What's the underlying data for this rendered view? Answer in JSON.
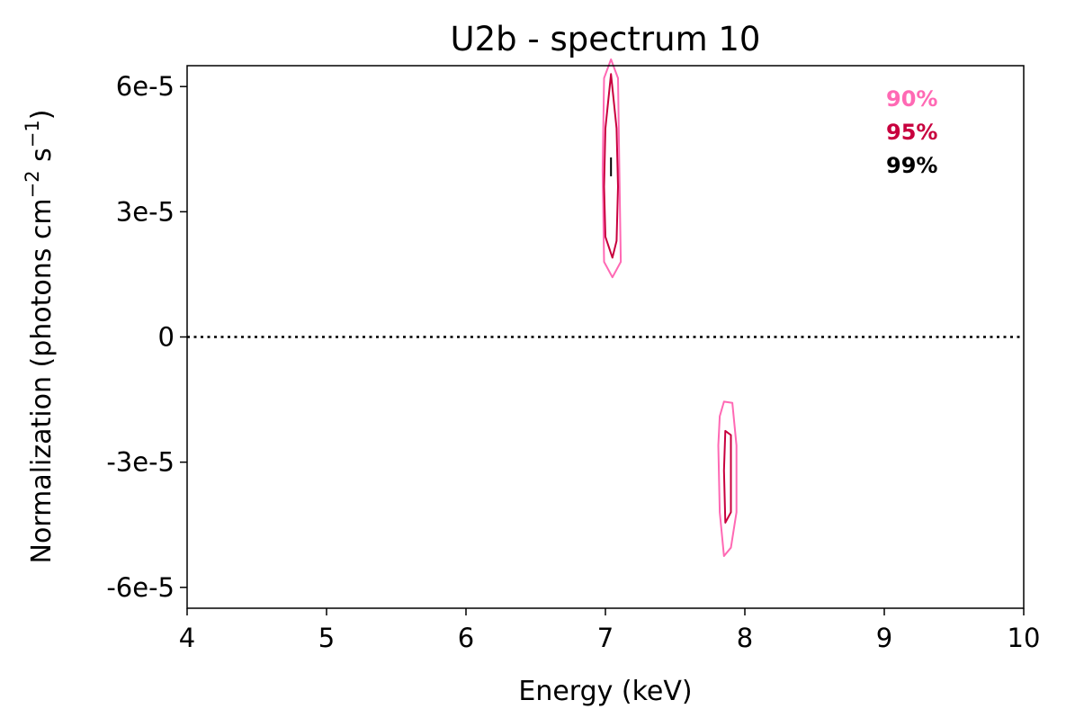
{
  "chart_data": {
    "type": "contour",
    "title": "U2b - spectrum 10",
    "xlabel": "Energy (keV)",
    "ylabel_main": "Normalization (photons cm",
    "ylabel_exp1": "−2",
    "ylabel_mid": " s",
    "ylabel_exp2": "−1",
    "ylabel_end": ")",
    "xlim": [
      4,
      10
    ],
    "ylim": [
      -6.5e-05,
      6.5e-05
    ],
    "x_ticks": [
      {
        "value": 4,
        "label": "4"
      },
      {
        "value": 5,
        "label": "5"
      },
      {
        "value": 6,
        "label": "6"
      },
      {
        "value": 7,
        "label": "7"
      },
      {
        "value": 8,
        "label": "8"
      },
      {
        "value": 9,
        "label": "9"
      },
      {
        "value": 10,
        "label": "10"
      }
    ],
    "y_ticks": [
      {
        "value": 6e-05,
        "label": "6e-5"
      },
      {
        "value": 3e-05,
        "label": "3e-5"
      },
      {
        "value": 0,
        "label": "0"
      },
      {
        "value": -3e-05,
        "label": "-3e-5"
      },
      {
        "value": -6e-05,
        "label": "-6e-5"
      }
    ],
    "reference_line": {
      "y": 0,
      "style": "dotted",
      "color": "#000000"
    },
    "legend": {
      "placement": "top-right",
      "entries": [
        {
          "label": "90%",
          "color": "#ff69b4"
        },
        {
          "label": "95%",
          "color": "#c8003e"
        },
        {
          "label": "99%",
          "color": "#000000"
        }
      ]
    },
    "contours": [
      {
        "level": "90%",
        "color": "#ff69b4",
        "points": [
          [
            7.04,
            6.65e-05
          ],
          [
            7.09,
            6.2e-05
          ],
          [
            7.1,
            4e-05
          ],
          [
            7.11,
            1.8e-05
          ],
          [
            7.05,
            1.43e-05
          ],
          [
            6.99,
            1.8e-05
          ],
          [
            6.98,
            4e-05
          ],
          [
            6.99,
            6.2e-05
          ]
        ]
      },
      {
        "level": "95%",
        "color": "#c8003e",
        "points": [
          [
            7.04,
            6.3e-05
          ],
          [
            7.08,
            5e-05
          ],
          [
            7.09,
            3.6e-05
          ],
          [
            7.08,
            2.3e-05
          ],
          [
            7.05,
            1.9e-05
          ],
          [
            7.0,
            2.4e-05
          ],
          [
            6.99,
            3.6e-05
          ],
          [
            7.0,
            5e-05
          ]
        ]
      },
      {
        "level": "99%",
        "color": "#000000",
        "points": [
          [
            7.04,
            4.3e-05
          ],
          [
            7.04,
            3.85e-05
          ]
        ]
      },
      {
        "level": "90%",
        "color": "#ff69b4",
        "points": [
          [
            7.85,
            -1.55e-05
          ],
          [
            7.91,
            -1.58e-05
          ],
          [
            7.94,
            -2.6e-05
          ],
          [
            7.94,
            -4.2e-05
          ],
          [
            7.9,
            -5.05e-05
          ],
          [
            7.85,
            -5.25e-05
          ],
          [
            7.82,
            -4.2e-05
          ],
          [
            7.81,
            -2.6e-05
          ],
          [
            7.82,
            -1.9e-05
          ]
        ]
      },
      {
        "level": "95%",
        "color": "#c8003e",
        "points": [
          [
            7.86,
            -2.25e-05
          ],
          [
            7.9,
            -2.35e-05
          ],
          [
            7.9,
            -4.2e-05
          ],
          [
            7.86,
            -4.45e-05
          ],
          [
            7.85,
            -3.2e-05
          ]
        ]
      }
    ]
  }
}
